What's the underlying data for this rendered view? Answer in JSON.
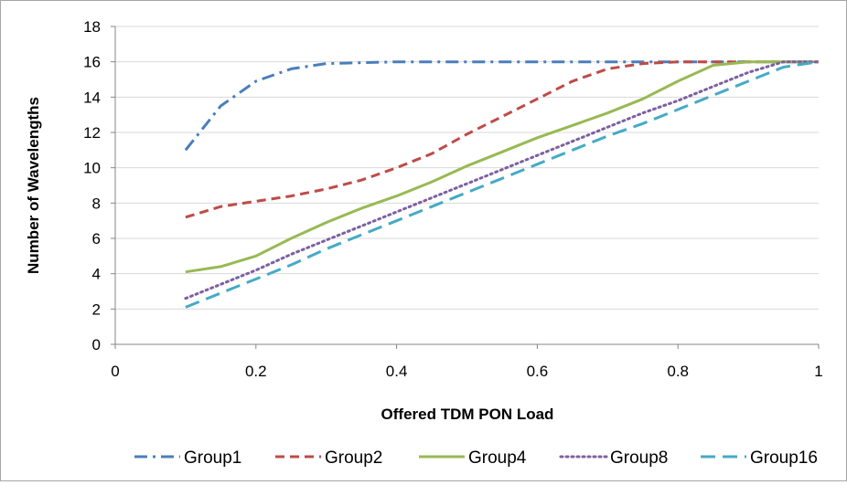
{
  "chart_data": {
    "type": "line",
    "title": "",
    "xlabel": "Offered TDM PON Load",
    "ylabel": "Number of Wavelengths",
    "xlim": [
      0,
      1
    ],
    "ylim": [
      0,
      18
    ],
    "x_ticks": [
      0,
      0.2,
      0.4,
      0.6,
      0.8,
      1
    ],
    "y_ticks": [
      0,
      2,
      4,
      6,
      8,
      10,
      12,
      14,
      16,
      18
    ],
    "x_tick_labels": [
      "0",
      "0.2",
      "0.4",
      "0.6",
      "0.8",
      "1"
    ],
    "y_tick_labels": [
      "0",
      "2",
      "4",
      "6",
      "8",
      "10",
      "12",
      "14",
      "16",
      "18"
    ],
    "grid": "horizontal",
    "legend_position": "bottom",
    "x": [
      0.1,
      0.15,
      0.2,
      0.25,
      0.3,
      0.35,
      0.4,
      0.45,
      0.5,
      0.55,
      0.6,
      0.65,
      0.7,
      0.75,
      0.8,
      0.85,
      0.9,
      0.95,
      1.0
    ],
    "series": [
      {
        "name": "Group1",
        "color": "#4a7ebb",
        "dash": "dashdot",
        "values": [
          11.0,
          13.5,
          14.9,
          15.6,
          15.9,
          15.95,
          16.0,
          16.0,
          16.0,
          16.0,
          16.0,
          16.0,
          16.0,
          16.0,
          16.0,
          16.0,
          16.0,
          16.0,
          16.0
        ]
      },
      {
        "name": "Group2",
        "color": "#be4b48",
        "dash": "dash",
        "values": [
          7.2,
          7.8,
          8.1,
          8.4,
          8.8,
          9.3,
          10.0,
          10.8,
          11.9,
          12.9,
          13.9,
          14.9,
          15.6,
          15.9,
          16.0,
          16.0,
          16.0,
          16.0,
          16.0
        ]
      },
      {
        "name": "Group4",
        "color": "#98b954",
        "dash": "solid",
        "values": [
          4.1,
          4.4,
          5.0,
          6.0,
          6.9,
          7.7,
          8.4,
          9.2,
          10.1,
          10.9,
          11.7,
          12.4,
          13.1,
          13.9,
          14.9,
          15.8,
          16.0,
          16.0,
          16.0
        ]
      },
      {
        "name": "Group8",
        "color": "#7d60a0",
        "dash": "dot",
        "values": [
          2.6,
          3.4,
          4.2,
          5.1,
          5.9,
          6.7,
          7.5,
          8.3,
          9.1,
          9.9,
          10.7,
          11.5,
          12.3,
          13.1,
          13.8,
          14.6,
          15.4,
          16.0,
          16.0
        ]
      },
      {
        "name": "Group16",
        "color": "#46aac5",
        "dash": "longdash",
        "values": [
          2.1,
          2.9,
          3.7,
          4.5,
          5.4,
          6.2,
          7.0,
          7.8,
          8.6,
          9.4,
          10.2,
          11.0,
          11.8,
          12.5,
          13.3,
          14.1,
          14.9,
          15.7,
          16.0
        ]
      }
    ]
  }
}
